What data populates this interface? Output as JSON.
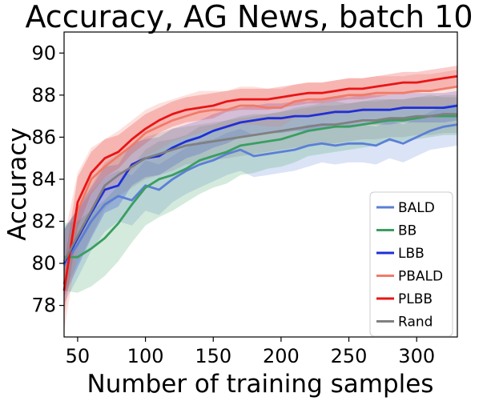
{
  "chart_data": {
    "type": "line",
    "title": "Accuracy, AG News, batch 10",
    "xlabel": "Number of training samples",
    "ylabel": "Accuracy",
    "xlim": [
      40,
      330
    ],
    "ylim": [
      76.5,
      91.0
    ],
    "xticks": [
      50,
      100,
      150,
      200,
      250,
      300
    ],
    "yticks": [
      78,
      80,
      82,
      84,
      86,
      88,
      90
    ],
    "grid": false,
    "legend_position": "lower-right",
    "x": [
      40,
      50,
      60,
      70,
      80,
      90,
      100,
      110,
      120,
      130,
      140,
      150,
      160,
      170,
      180,
      190,
      200,
      210,
      220,
      230,
      240,
      250,
      260,
      270,
      280,
      290,
      300,
      310,
      320,
      330
    ],
    "series": [
      {
        "name": "BALD",
        "color": "#5b7fd6",
        "values": [
          79.9,
          80.9,
          82.0,
          82.8,
          83.2,
          83.0,
          83.7,
          83.5,
          84.0,
          84.4,
          84.7,
          84.9,
          85.2,
          85.4,
          85.1,
          85.2,
          85.3,
          85.4,
          85.6,
          85.7,
          85.6,
          85.7,
          85.7,
          85.6,
          85.9,
          85.7,
          86.0,
          86.3,
          86.5,
          86.6
        ],
        "band": [
          1.8,
          1.6,
          1.4,
          1.3,
          1.2,
          1.2,
          1.2,
          1.2,
          1.1,
          1.1,
          1.1,
          1.0,
          1.0,
          1.0,
          1.0,
          1.0,
          1.0,
          1.0,
          1.0,
          0.9,
          0.9,
          0.9,
          0.9,
          0.9,
          0.9,
          0.9,
          0.9,
          0.9,
          1.0,
          1.0
        ]
      },
      {
        "name": "BB",
        "color": "#3a9e60",
        "values": [
          80.3,
          80.3,
          80.7,
          81.2,
          81.9,
          82.8,
          83.6,
          84.0,
          84.2,
          84.5,
          84.9,
          85.1,
          85.3,
          85.6,
          85.7,
          85.8,
          85.9,
          86.1,
          86.3,
          86.4,
          86.5,
          86.5,
          86.6,
          86.7,
          86.8,
          86.8,
          86.9,
          87.0,
          87.0,
          87.0
        ],
        "band": [
          1.6,
          1.7,
          1.8,
          1.8,
          1.8,
          1.8,
          1.8,
          1.8,
          1.7,
          1.6,
          1.6,
          1.5,
          1.5,
          1.4,
          1.4,
          1.3,
          1.3,
          1.3,
          1.2,
          1.2,
          1.2,
          1.1,
          1.1,
          1.1,
          1.0,
          1.0,
          1.0,
          1.0,
          0.9,
          0.9
        ]
      },
      {
        "name": "LBB",
        "color": "#1f2fd6",
        "values": [
          80.0,
          81.2,
          82.4,
          83.5,
          83.7,
          84.7,
          85.0,
          85.1,
          85.5,
          85.8,
          86.0,
          86.3,
          86.5,
          86.7,
          86.8,
          86.9,
          86.9,
          87.0,
          87.0,
          87.1,
          87.2,
          87.2,
          87.3,
          87.3,
          87.3,
          87.4,
          87.4,
          87.4,
          87.4,
          87.5
        ],
        "band": [
          1.6,
          1.4,
          1.2,
          1.1,
          1.0,
          1.0,
          0.9,
          0.9,
          0.9,
          0.8,
          0.8,
          0.8,
          0.8,
          0.7,
          0.7,
          0.7,
          0.7,
          0.7,
          0.7,
          0.7,
          0.7,
          0.7,
          0.7,
          0.7,
          0.7,
          0.7,
          0.7,
          0.7,
          0.7,
          0.7
        ]
      },
      {
        "name": "PBALD",
        "color": "#f07b68",
        "values": [
          79.0,
          82.5,
          84.0,
          84.6,
          85.1,
          85.6,
          86.2,
          86.5,
          86.8,
          87.0,
          87.2,
          87.3,
          87.3,
          87.5,
          87.5,
          87.4,
          87.4,
          87.7,
          87.8,
          87.8,
          87.9,
          88.0,
          88.0,
          88.1,
          88.1,
          88.1,
          88.2,
          88.2,
          88.3,
          88.4
        ],
        "band": [
          2.2,
          1.8,
          1.5,
          1.3,
          1.2,
          1.2,
          1.1,
          1.1,
          1.0,
          1.0,
          1.0,
          0.9,
          0.9,
          0.9,
          0.9,
          0.9,
          0.9,
          0.8,
          0.8,
          0.8,
          0.8,
          0.8,
          0.8,
          0.8,
          0.8,
          0.8,
          0.8,
          0.8,
          0.8,
          0.8
        ]
      },
      {
        "name": "PLBB",
        "color": "#e81515",
        "values": [
          78.7,
          82.9,
          84.3,
          85.0,
          85.3,
          85.9,
          86.4,
          86.8,
          87.1,
          87.3,
          87.4,
          87.5,
          87.7,
          87.8,
          87.8,
          87.8,
          87.9,
          88.0,
          88.1,
          88.1,
          88.2,
          88.3,
          88.3,
          88.4,
          88.5,
          88.6,
          88.6,
          88.7,
          88.8,
          88.9
        ],
        "band": [
          1.2,
          1.2,
          1.0,
          0.9,
          0.8,
          0.7,
          0.7,
          0.6,
          0.6,
          0.6,
          0.6,
          0.6,
          0.5,
          0.5,
          0.5,
          0.5,
          0.5,
          0.5,
          0.5,
          0.5,
          0.5,
          0.5,
          0.5,
          0.5,
          0.5,
          0.5,
          0.5,
          0.5,
          0.5,
          0.5
        ]
      },
      {
        "name": "Rand",
        "color": "#808080",
        "values": [
          80.1,
          81.3,
          82.5,
          83.7,
          84.2,
          84.6,
          85.0,
          85.2,
          85.4,
          85.6,
          85.7,
          85.8,
          85.9,
          86.0,
          86.1,
          86.2,
          86.3,
          86.4,
          86.5,
          86.6,
          86.6,
          86.7,
          86.8,
          86.8,
          86.9,
          86.9,
          87.0,
          87.0,
          87.1,
          87.1
        ],
        "band": [
          1.5,
          1.3,
          1.2,
          1.1,
          1.0,
          1.0,
          1.0,
          1.0,
          1.0,
          0.9,
          0.9,
          0.9,
          0.9,
          0.9,
          0.9,
          0.9,
          0.9,
          0.9,
          0.9,
          0.9,
          0.9,
          0.9,
          0.9,
          0.9,
          0.9,
          0.9,
          0.9,
          0.9,
          0.9,
          0.9
        ]
      }
    ]
  }
}
